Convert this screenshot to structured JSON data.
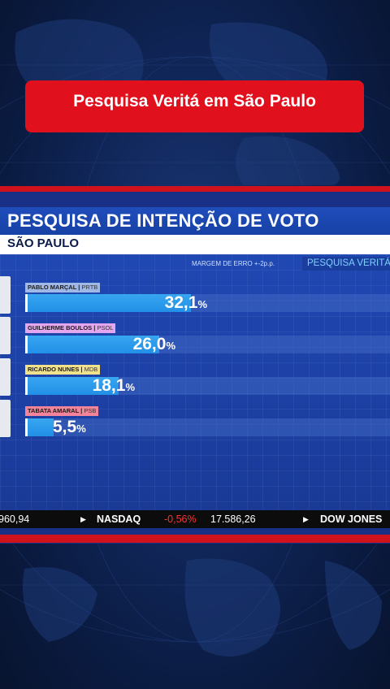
{
  "headline": "Pesquisa Veritá em São Paulo",
  "broadcast": {
    "title": "PESQUISA DE INTENÇÃO DE VOTO",
    "region": "SÃO PAULO",
    "margin_of_error": "MARGEM DE ERRO +-2p.p.",
    "source": "PESQUISA VERITÁ"
  },
  "chart_data": {
    "type": "bar",
    "title": "PESQUISA DE INTENÇÃO DE VOTO",
    "subtitle": "SÃO PAULO",
    "orientation": "horizontal",
    "ylim": [
      0,
      100
    ],
    "unit": "%",
    "categories": [
      "PABLO MARÇAL",
      "GUILHERME BOULOS",
      "RICARDO NUNES",
      "TABATA AMARAL"
    ],
    "values": [
      32.1,
      26.0,
      18.1,
      5.5
    ],
    "bars": [
      {
        "name": "PABLO MARÇAL",
        "party": "PRTB",
        "value_text": "32,1",
        "value": 32.1,
        "label_color": "#9fb8e6"
      },
      {
        "name": "GUILHERME BOULOS",
        "party": "PSOL",
        "value_text": "26,0",
        "value": 26.0,
        "label_color": "#e4a6ee"
      },
      {
        "name": "RICARDO NUNES",
        "party": "MDB",
        "value_text": "18,1",
        "value": 18.1,
        "label_color": "#f2e28c"
      },
      {
        "name": "TABATA AMARAL",
        "party": "PSB",
        "value_text": "5,5",
        "value": 5.5,
        "label_color": "#f4849a"
      }
    ],
    "percent_sign": "%"
  },
  "ticker": {
    "prev_value": "960,94",
    "index1": "NASDAQ",
    "change1": "-0,56%",
    "value1": "17.586,26",
    "index2": "DOW JONES"
  },
  "colors": {
    "headline_bg": "#e0101c",
    "bar_fill": "#2b9aec",
    "accent_red": "#d0121d"
  }
}
